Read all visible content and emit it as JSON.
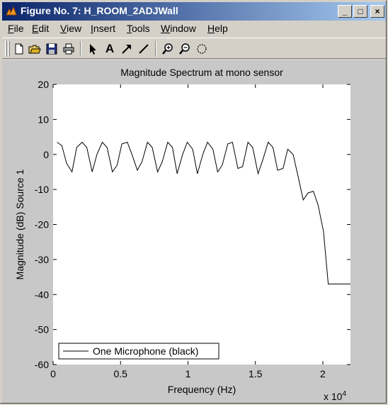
{
  "window": {
    "title": "Figure No. 7: H_ROOM_2ADJWall",
    "controls": {
      "minimize": "_",
      "maximize": "□",
      "close": "×"
    }
  },
  "menu": [
    {
      "label": "File",
      "ul": "F",
      "rest": "ile"
    },
    {
      "label": "Edit",
      "ul": "E",
      "rest": "dit"
    },
    {
      "label": "View",
      "ul": "V",
      "rest": "iew"
    },
    {
      "label": "Insert",
      "ul": "I",
      "rest": "nsert"
    },
    {
      "label": "Tools",
      "ul": "T",
      "rest": "ools"
    },
    {
      "label": "Window",
      "ul": "W",
      "rest": "indow"
    },
    {
      "label": "Help",
      "ul": "H",
      "rest": "elp"
    }
  ],
  "toolbar": {
    "tools": [
      "new-file-icon",
      "open-folder-icon",
      "save-icon",
      "print-icon",
      "arrow-select-icon",
      "text-insert-icon",
      "arrow-insert-icon",
      "line-insert-icon",
      "zoom-in-icon",
      "zoom-out-icon",
      "rotate-icon"
    ],
    "text_tool_label": "A"
  },
  "colors": {
    "titlebar_start": "#0a246a",
    "titlebar_end": "#a6caf0",
    "plot_bg": "#ffffff",
    "figure_bg": "#c8c8c8",
    "line": "#000000"
  },
  "chart_data": {
    "type": "line",
    "title": "Magnitude Spectrum at mono sensor",
    "xlabel": "Frequency (Hz)",
    "ylabel": "Magnitude (dB) Source 1",
    "x_exponent_label": "x 10",
    "x_exponent_power": "4",
    "xlim": [
      0,
      22050
    ],
    "ylim": [
      -60,
      20
    ],
    "xticks": [
      0,
      5000,
      10000,
      15000,
      20000
    ],
    "xtick_labels": [
      "0",
      "0.5",
      "1",
      "1.5",
      "2"
    ],
    "yticks": [
      20,
      10,
      0,
      -10,
      -20,
      -30,
      -40,
      -50,
      -60
    ],
    "ytick_labels": [
      "20",
      "10",
      "0",
      "-10",
      "-20",
      "-30",
      "-40",
      "-50",
      "-60"
    ],
    "grid": false,
    "legend_position": "bottom-left",
    "series": [
      {
        "name": "One Microphone (black)",
        "x": [
          300,
          650,
          1000,
          1400,
          1750,
          2150,
          2500,
          2900,
          3250,
          3650,
          4000,
          4400,
          4750,
          5100,
          5500,
          5850,
          6250,
          6600,
          7000,
          7350,
          7750,
          8100,
          8500,
          8850,
          9200,
          9600,
          9950,
          10350,
          10700,
          11100,
          11450,
          11850,
          12200,
          12550,
          12950,
          13300,
          13700,
          14050,
          14450,
          14800,
          15200,
          15550,
          15950,
          16300,
          16650,
          17050,
          17400,
          17800,
          18150,
          18550,
          18900,
          19300,
          19650,
          20050,
          20400,
          20750,
          21150,
          21500,
          21850,
          22050
        ],
        "y": [
          3.5,
          2.5,
          -2.5,
          -5.0,
          2.0,
          3.5,
          2.0,
          -5.0,
          0.0,
          3.5,
          2.0,
          -5.0,
          -3.0,
          3.0,
          3.5,
          0.0,
          -4.5,
          -2.0,
          3.5,
          2.0,
          -5.0,
          -2.0,
          3.5,
          2.0,
          -5.5,
          0.0,
          3.5,
          1.5,
          -5.5,
          0.0,
          3.5,
          1.5,
          -5.0,
          -3.0,
          3.0,
          3.5,
          -4.0,
          -3.5,
          3.5,
          2.0,
          -5.5,
          -1.5,
          3.5,
          2.0,
          -4.5,
          -4.0,
          1.5,
          0.0,
          -6.0,
          -13.0,
          -11.0,
          -10.5,
          -14.5,
          -22.0,
          -37.0,
          -37.0,
          -37.0,
          -37.0,
          -37.0,
          -37.0
        ]
      }
    ]
  }
}
